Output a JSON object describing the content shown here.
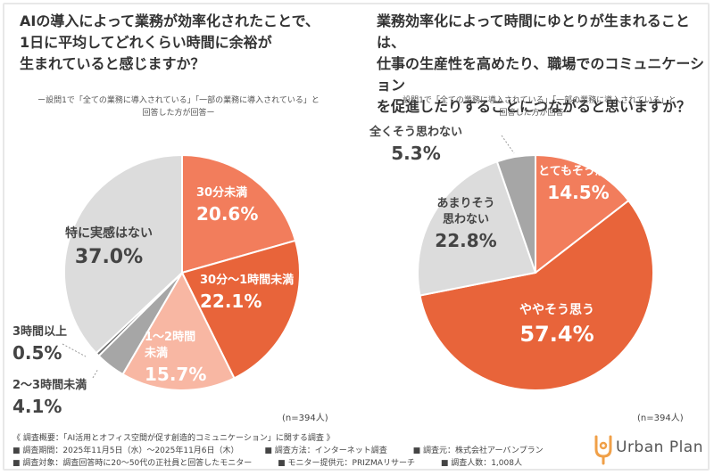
{
  "colors": {
    "dark_orange": "#e8643a",
    "mid_orange": "#f27d5c",
    "light_pink": "#f8b7a3",
    "gray": "#a6a6a6",
    "dark_gray": "#6f6f6f",
    "light_gray": "#dcdcdc",
    "accent": "#f0a048"
  },
  "chart_data": [
    {
      "type": "pie",
      "title": "AIの導入によって業務が効率化されたことで、\n1日に平均してどれくらい時間に余裕が\n生まれていると感じますか？",
      "subtitle": "ー設問1で「全ての業務に導入されている」「一部の業務に導入されている」と\n回答した方が回答ー",
      "n_label": "(n=394人)",
      "slices": [
        {
          "label": "30分未満",
          "value": 20.6,
          "value_text": "20.6%",
          "color": "#f27d5c"
        },
        {
          "label": "30分〜1時間未満",
          "value": 22.1,
          "value_text": "22.1%",
          "color": "#e8643a"
        },
        {
          "label": "1〜2時間\n未満",
          "value": 15.7,
          "value_text": "15.7%",
          "color": "#f8b7a3"
        },
        {
          "label": "2〜3時間未満",
          "value": 4.1,
          "value_text": "4.1%",
          "color": "#a6a6a6"
        },
        {
          "label": "3時間以上",
          "value": 0.5,
          "value_text": "0.5%",
          "color": "#6f6f6f"
        },
        {
          "label": "特に実感はない",
          "value": 37.0,
          "value_text": "37.0%",
          "color": "#dcdcdc"
        }
      ]
    },
    {
      "type": "pie",
      "title": "業務効率化によって時間にゆとりが生まれることは、\n仕事の生産性を高めたり、職場でのコミュニケーション\nを促進したりすることにつながると思いますか？",
      "subtitle": "ー設問1で「全ての業務に導入されている」「一部の業務に導入されている」と\n回答した方が回答ー",
      "n_label": "(n=394人)",
      "slices": [
        {
          "label": "とてもそう思う",
          "value": 14.5,
          "value_text": "14.5%",
          "color": "#f27d5c"
        },
        {
          "label": "ややそう思う",
          "value": 57.4,
          "value_text": "57.4%",
          "color": "#e8643a"
        },
        {
          "label": "あまりそう\n思わない",
          "value": 22.8,
          "value_text": "22.8%",
          "color": "#dcdcdc"
        },
        {
          "label": "全くそう思わない",
          "value": 5.3,
          "value_text": "5.3%",
          "color": "#a6a6a6"
        }
      ]
    }
  ],
  "footer": {
    "overview": "《 調査概要：「AI活用とオフィス空間が促す創造的コミュニケーション」に関する調査 》",
    "period": "■ 調査期間：2025年11月5日（水）〜2025年11月6日（木）",
    "method": "■ 調査方法：インターネット調査",
    "organizer": "■ 調査元：株式会社アーバンプラン",
    "target": "■ 調査対象：調査回答時に20〜50代の正社員と回答したモニター",
    "provider": "■ モニター提供元：PRIZMAリサーチ",
    "count": "■ 調査人数：1,008人"
  },
  "logo": {
    "text": "Urban Plan",
    "icon": "urban-plan-logo-icon"
  }
}
